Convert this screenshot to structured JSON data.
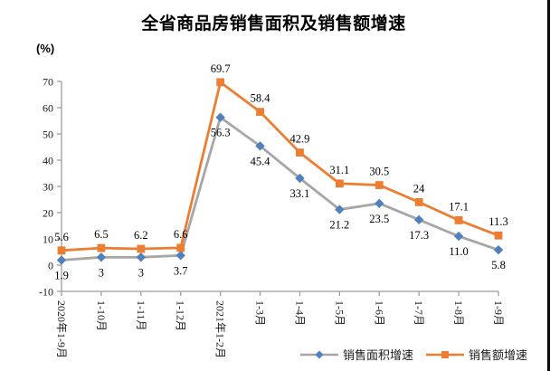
{
  "title": "全省商品房销售面积及销售额增速",
  "y_axis_unit_label": "(%)",
  "chart_data": {
    "type": "line",
    "title": "全省商品房销售面积及销售额增速",
    "ylabel": "(%)",
    "categories": [
      "2020年1-9月",
      "1-10月",
      "1-11月",
      "1-12月",
      "2021年1-2月",
      "1-3月",
      "1-4月",
      "1-5月",
      "1-6月",
      "1-7月",
      "1-8月",
      "1-9月"
    ],
    "series": [
      {
        "name": "销售面积增速",
        "color": "#a6a6a6",
        "marker": "diamond",
        "marker_color": "#4f81bd",
        "values": [
          1.9,
          3,
          3,
          3.7,
          56.3,
          45.4,
          33.1,
          21.2,
          23.5,
          17.3,
          11.0,
          5.8
        ],
        "labels": [
          "1.9",
          "3",
          "3",
          "3.7",
          "56.3",
          "45.4",
          "33.1",
          "21.2",
          "23.5",
          "17.3",
          "11.0",
          "5.8"
        ],
        "label_position": "below"
      },
      {
        "name": "销售额增速",
        "color": "#ed7d31",
        "marker": "square",
        "marker_color": "#ed7d31",
        "values": [
          5.6,
          6.5,
          6.2,
          6.6,
          69.7,
          58.4,
          42.9,
          31.1,
          30.5,
          24,
          17.1,
          11.3
        ],
        "labels": [
          "5.6",
          "6.5",
          "6.2",
          "6.6",
          "69.7",
          "58.4",
          "42.9",
          "31.1",
          "30.5",
          "24",
          "17.1",
          "11.3"
        ],
        "label_position": "above"
      }
    ],
    "y_ticks": [
      -10,
      0,
      10,
      20,
      30,
      40,
      50,
      60,
      70
    ],
    "ylim": [
      -10,
      70
    ],
    "axis_color": "#9e9e9e",
    "grid": false,
    "legend_position": "bottom-right",
    "x_label_rotation": 90
  },
  "legend": {
    "items": [
      {
        "label": "销售面积增速"
      },
      {
        "label": "销售额增速"
      }
    ]
  }
}
